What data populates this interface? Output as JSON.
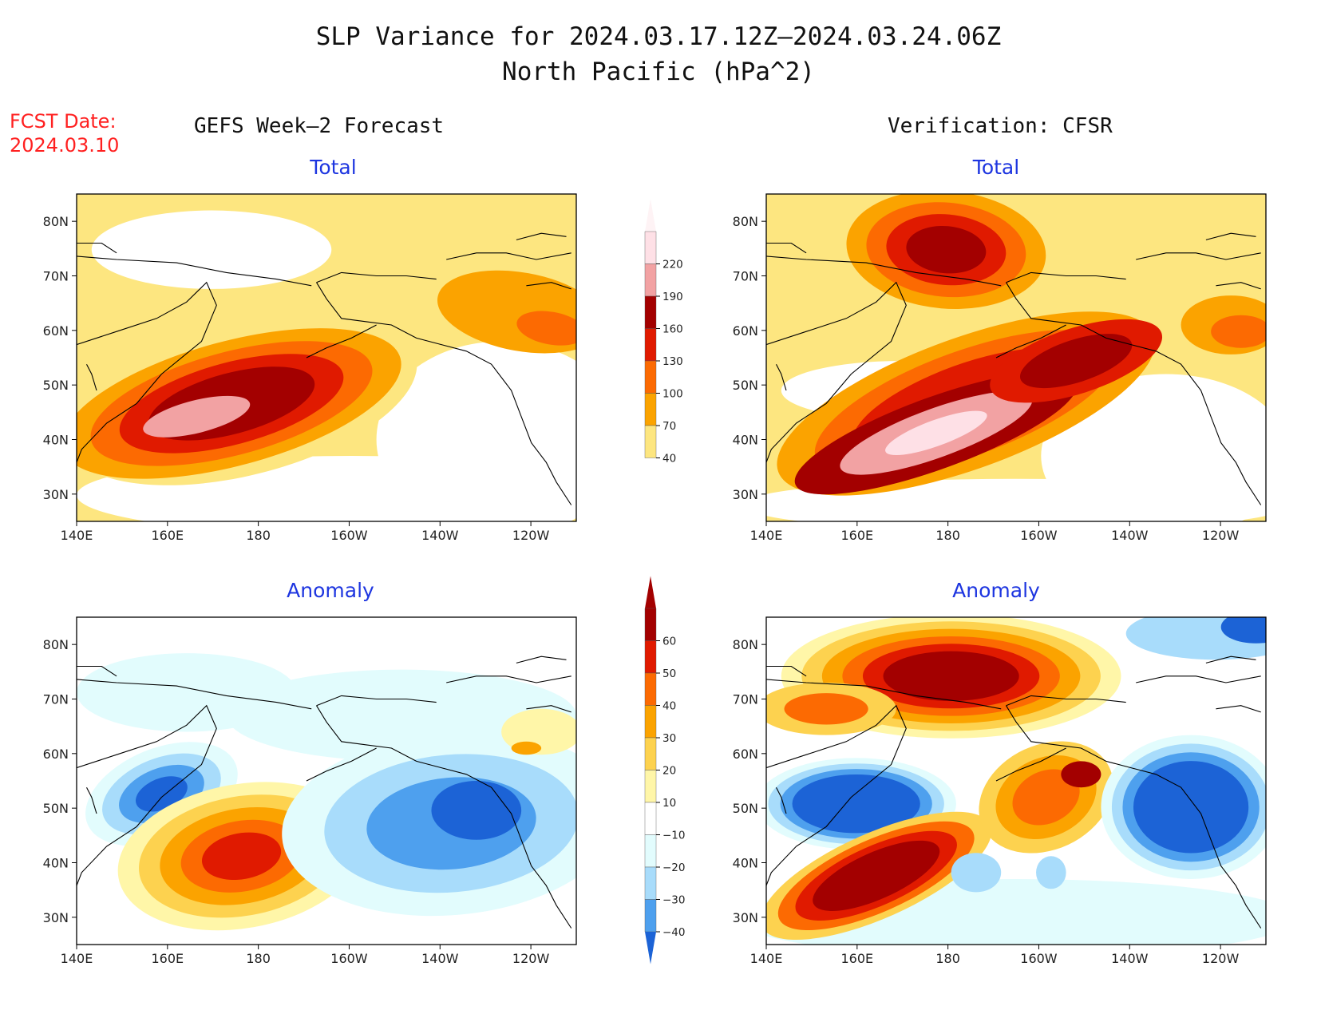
{
  "title": {
    "line1": "SLP Variance for 2024.03.17.12Z–2024.03.24.06Z",
    "line2": "North Pacific (hPa^2)"
  },
  "forecast": {
    "label": "FCST Date:",
    "date": "2024.03.10"
  },
  "columns": {
    "left": "GEFS Week–2 Forecast",
    "right": "Verification: CFSR"
  },
  "panels": {
    "top_left": {
      "title": "Total"
    },
    "top_right": {
      "title": "Total"
    },
    "bottom_left": {
      "title": "Anomaly"
    },
    "bottom_right": {
      "title": "Anomaly"
    }
  },
  "axes": {
    "lat_ticks": [
      "80N",
      "70N",
      "60N",
      "50N",
      "40N",
      "30N"
    ],
    "lon_ticks": [
      "140E",
      "160E",
      "180",
      "160W",
      "140W",
      "120W"
    ]
  },
  "colors": {
    "total": [
      "#fde680",
      "#fba300",
      "#fc6a02",
      "#e01a00",
      "#a30000",
      "#f2a2a3",
      "#fee0e6"
    ],
    "anomaly_pos": [
      "#fff6a8",
      "#fdd24f",
      "#fba300",
      "#fc6a02",
      "#e01a00",
      "#a30000"
    ],
    "anomaly_neg": [
      "#e2fcfd",
      "#a8dcfb",
      "#4ea0ee",
      "#1c63d6",
      "#0a45b7"
    ],
    "land_outline": "#000000"
  },
  "chart_data": [
    {
      "type": "heatmap",
      "title": "Total",
      "column": "GEFS Week–2 Forecast",
      "xlim": [
        140,
        250
      ],
      "ylim": [
        25,
        85
      ],
      "features": [
        {
          "lon": 163,
          "lat": 43,
          "level": 220
        },
        {
          "lon": 178,
          "lat": 47,
          "level": 160
        },
        {
          "lon": 225,
          "lat": 66,
          "level": 100
        }
      ]
    },
    {
      "type": "heatmap",
      "title": "Total",
      "column": "Verification: CFSR",
      "xlim": [
        140,
        250
      ],
      "ylim": [
        25,
        85
      ],
      "features": [
        {
          "lon": 165,
          "lat": 42,
          "level": 220
        },
        {
          "lon": 180,
          "lat": 75,
          "level": 160
        },
        {
          "lon": 203,
          "lat": 53,
          "level": 160
        },
        {
          "lon": 247,
          "lat": 64,
          "level": 100
        }
      ]
    },
    {
      "type": "heatmap",
      "title": "Anomaly",
      "column": "GEFS Week–2 Forecast",
      "xlim": [
        140,
        250
      ],
      "ylim": [
        25,
        85
      ],
      "features": [
        {
          "lon": 166,
          "lat": 42,
          "level": 50
        },
        {
          "lon": 155,
          "lat": 53,
          "level": -30
        },
        {
          "lon": 225,
          "lat": 50,
          "level": -40
        }
      ]
    },
    {
      "type": "heatmap",
      "title": "Anomaly",
      "column": "Verification: CFSR",
      "xlim": [
        140,
        250
      ],
      "ylim": [
        25,
        85
      ],
      "features": [
        {
          "lon": 180,
          "lat": 72,
          "level": 60
        },
        {
          "lon": 163,
          "lat": 38,
          "level": 60
        },
        {
          "lon": 165,
          "lat": 52,
          "level": -40
        },
        {
          "lon": 235,
          "lat": 48,
          "level": -40
        },
        {
          "lon": 207,
          "lat": 55,
          "level": 50
        }
      ]
    }
  ],
  "colorbars": {
    "total": {
      "labels": [
        "220",
        "190",
        "160",
        "130",
        "100",
        "70",
        "40"
      ]
    },
    "anomaly": {
      "labels": [
        "60",
        "50",
        "40",
        "30",
        "20",
        "10",
        "−10",
        "−20",
        "−30",
        "−40"
      ]
    }
  }
}
